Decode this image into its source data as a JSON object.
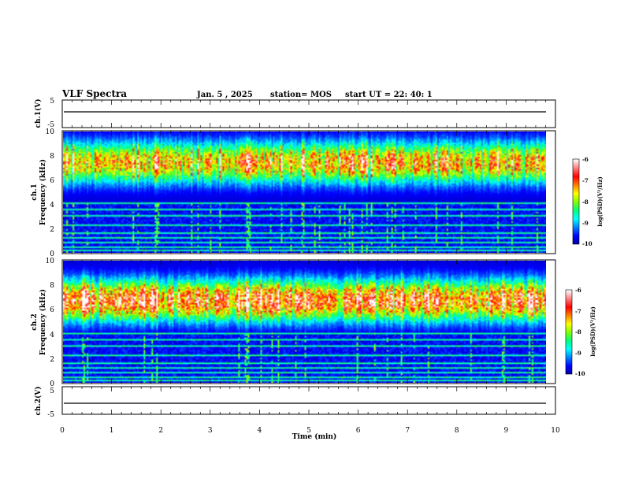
{
  "header": {
    "title": "VLF Spectra",
    "date": "Jan. 5 , 2025",
    "station": "station= MOS",
    "start": "start UT =  22: 40: 1"
  },
  "chart_data": [
    {
      "type": "line",
      "name": "ch1-voltage",
      "ylabel": "ch.1(V)",
      "ylim": [
        -5,
        5
      ],
      "yticks": [
        "5",
        "-5"
      ],
      "trace_level": 0
    },
    {
      "type": "heatmap",
      "name": "ch1-spectrogram",
      "ylabel_line1": "ch.1",
      "ylabel_line2": "Frequency (kHz)",
      "ylim": [
        0,
        10
      ],
      "yticks": [
        "0",
        "2",
        "4",
        "6",
        "8",
        "10"
      ],
      "band_center_khz": 7.5,
      "colorbar": {
        "label": "log(PSD)(V²/Hz)",
        "range": [
          -10,
          -6
        ],
        "ticks": [
          "-6",
          "-7",
          "-8",
          "-9",
          "-10"
        ]
      }
    },
    {
      "type": "heatmap",
      "name": "ch2-spectrogram",
      "ylabel_line1": "ch.2",
      "ylabel_line2": "Frequency (kHz)",
      "ylim": [
        0,
        10
      ],
      "yticks": [
        "0",
        "2",
        "4",
        "6",
        "8",
        "10"
      ],
      "band_center_khz": 6.8,
      "colorbar": {
        "label": "log(PSD)(V²/Hz)",
        "range": [
          -10,
          -6
        ],
        "ticks": [
          "-6",
          "-7",
          "-8",
          "-9",
          "-10"
        ]
      }
    },
    {
      "type": "line",
      "name": "ch2-voltage",
      "ylabel": "ch.2(V)",
      "ylim": [
        -5,
        5
      ],
      "yticks": [
        "5",
        "-5"
      ],
      "trace_level": 0
    }
  ],
  "xaxis": {
    "label": "Time (min)",
    "range": [
      0,
      10
    ],
    "ticks": [
      "0",
      "1",
      "2",
      "3",
      "4",
      "5",
      "6",
      "7",
      "8",
      "9",
      "10"
    ]
  },
  "colors": {
    "colormap": [
      "#0000a0",
      "#0000ff",
      "#0080ff",
      "#00ffff",
      "#00ff80",
      "#80ff00",
      "#ffff00",
      "#ff8000",
      "#ff0000",
      "#ff8080",
      "#ffffff"
    ],
    "background": "#000000"
  }
}
